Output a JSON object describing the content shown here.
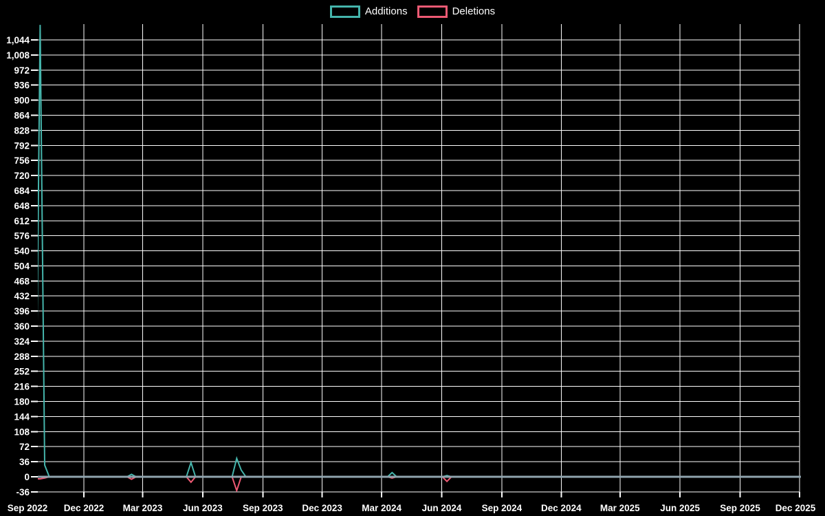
{
  "legend": {
    "additions_label": "Additions",
    "deletions_label": "Deletions"
  },
  "chart_data": {
    "type": "line",
    "title": "",
    "description": "Weekly additions and deletions line chart, mostly zero with spikes",
    "background_color": "#000000",
    "grid": true,
    "grid_color": "#ffffff",
    "text_color": "#ffffff",
    "zero_axis_color": "#90a4ae",
    "legend_position": "top-center",
    "y_axis": {
      "tick_min": -36,
      "tick_max": 1044,
      "tick_step": 36,
      "axis_min": -36,
      "axis_max": 1080,
      "tick_labels": [
        "-36",
        "0",
        "36",
        "72",
        "108",
        "144",
        "180",
        "216",
        "252",
        "288",
        "324",
        "360",
        "396",
        "432",
        "468",
        "504",
        "540",
        "576",
        "612",
        "648",
        "684",
        "720",
        "756",
        "792",
        "828",
        "864",
        "900",
        "936",
        "972",
        "1,008",
        "1,044"
      ]
    },
    "x_axis": {
      "tick_labels": [
        "Sep 2022",
        "Dec 2022",
        "Mar 2023",
        "Jun 2023",
        "Sep 2023",
        "Dec 2023",
        "Mar 2024",
        "Jun 2024",
        "Sep 2024",
        "Dec 2024",
        "Mar 2025",
        "Jun 2025",
        "Sep 2025",
        "Dec 2025"
      ],
      "tick_dates": [
        "2022-09-01",
        "2022-12-01",
        "2023-03-01",
        "2023-06-01",
        "2023-09-01",
        "2023-12-01",
        "2024-03-01",
        "2024-06-01",
        "2024-09-01",
        "2024-12-01",
        "2025-03-01",
        "2025-06-01",
        "2025-09-01",
        "2025-12-01"
      ],
      "start_date": "2022-09-18",
      "end_date": "2025-12-03"
    },
    "series": [
      {
        "name": "Additions",
        "color": "#45b5ac",
        "points": [
          [
            "2022-09-18",
            0
          ],
          [
            "2022-09-25",
            1080
          ],
          [
            "2022-10-02",
            28
          ],
          [
            "2022-10-09",
            0
          ],
          [
            "2023-02-05",
            0
          ],
          [
            "2023-02-12",
            6
          ],
          [
            "2023-02-19",
            0
          ],
          [
            "2023-05-07",
            0
          ],
          [
            "2023-05-14",
            34
          ],
          [
            "2023-05-21",
            0
          ],
          [
            "2023-07-16",
            0
          ],
          [
            "2023-07-23",
            44
          ],
          [
            "2023-07-30",
            16
          ],
          [
            "2023-08-06",
            0
          ],
          [
            "2024-03-10",
            0
          ],
          [
            "2024-03-17",
            10
          ],
          [
            "2024-03-24",
            0
          ],
          [
            "2024-06-02",
            0
          ],
          [
            "2024-06-09",
            3
          ],
          [
            "2024-06-16",
            0
          ]
        ]
      },
      {
        "name": "Deletions",
        "color": "#ee5a74",
        "points": [
          [
            "2022-09-18",
            -5
          ],
          [
            "2022-09-25",
            -5
          ],
          [
            "2022-10-02",
            -3
          ],
          [
            "2022-10-09",
            0
          ],
          [
            "2023-02-05",
            0
          ],
          [
            "2023-02-12",
            -6
          ],
          [
            "2023-02-19",
            0
          ],
          [
            "2023-05-07",
            0
          ],
          [
            "2023-05-14",
            -13
          ],
          [
            "2023-05-21",
            0
          ],
          [
            "2023-07-16",
            0
          ],
          [
            "2023-07-23",
            -33
          ],
          [
            "2023-07-30",
            0
          ],
          [
            "2024-03-10",
            0
          ],
          [
            "2024-03-17",
            -3
          ],
          [
            "2024-03-24",
            0
          ],
          [
            "2024-06-02",
            0
          ],
          [
            "2024-06-09",
            -11
          ],
          [
            "2024-06-16",
            0
          ]
        ]
      }
    ]
  }
}
